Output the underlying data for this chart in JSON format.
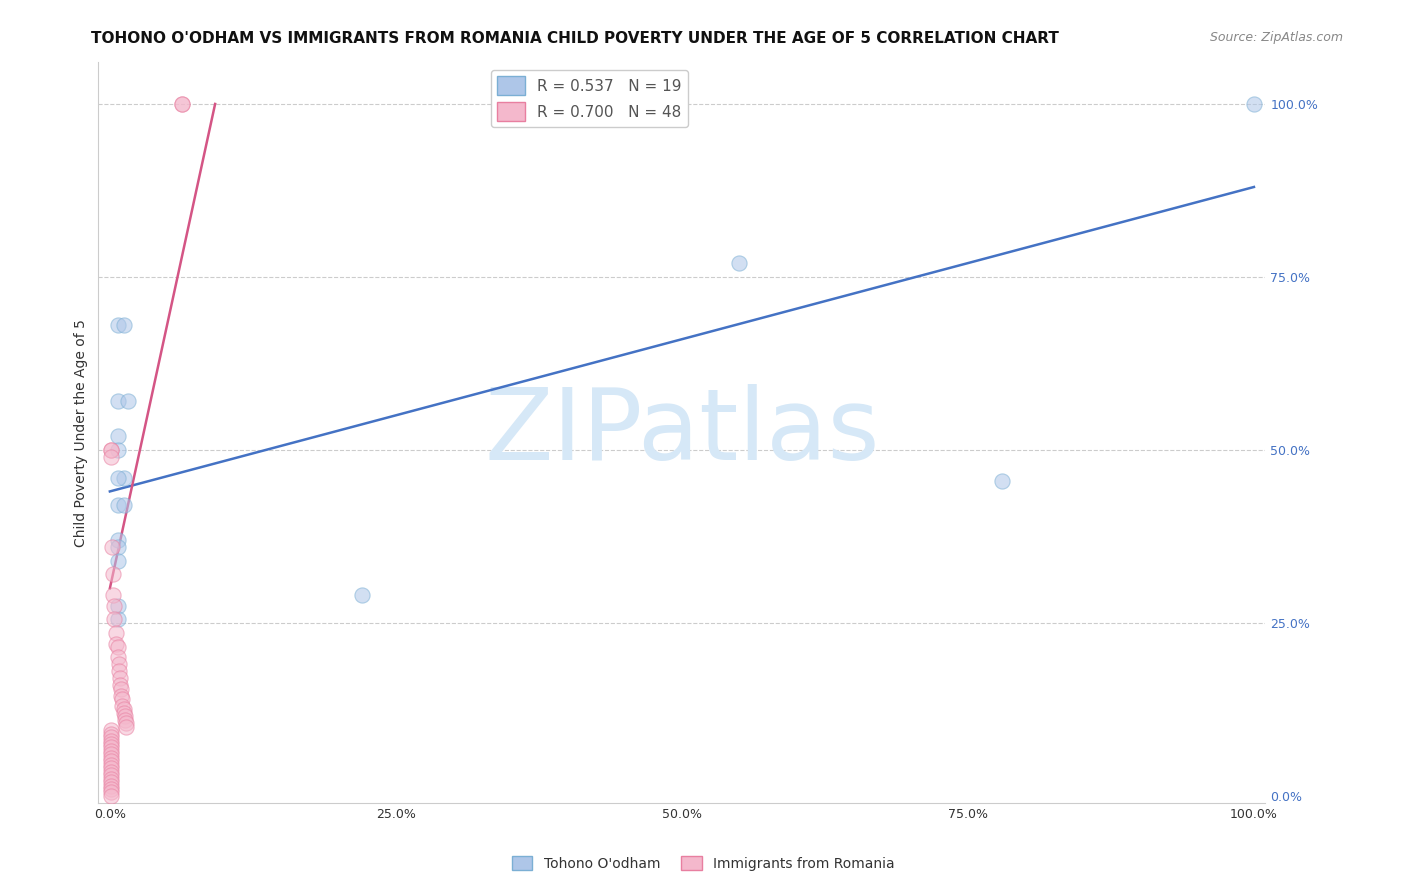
{
  "title": "TOHONO O'ODHAM VS IMMIGRANTS FROM ROMANIA CHILD POVERTY UNDER THE AGE OF 5 CORRELATION CHART",
  "source": "Source: ZipAtlas.com",
  "ylabel": "Child Poverty Under the Age of 5",
  "watermark": "ZIPatlas",
  "blue_R": 0.537,
  "blue_N": 19,
  "pink_R": 0.7,
  "pink_N": 48,
  "blue_scatter": [
    [
      0.007,
      0.68
    ],
    [
      0.012,
      0.68
    ],
    [
      0.007,
      0.57
    ],
    [
      0.016,
      0.57
    ],
    [
      0.007,
      0.52
    ],
    [
      0.007,
      0.5
    ],
    [
      0.012,
      0.46
    ],
    [
      0.007,
      0.46
    ],
    [
      0.007,
      0.42
    ],
    [
      0.012,
      0.42
    ],
    [
      0.007,
      0.37
    ],
    [
      0.007,
      0.36
    ],
    [
      0.007,
      0.34
    ],
    [
      0.007,
      0.275
    ],
    [
      0.007,
      0.255
    ],
    [
      0.22,
      0.29
    ],
    [
      0.55,
      0.77
    ],
    [
      0.78,
      0.455
    ],
    [
      1.0,
      1.0
    ]
  ],
  "pink_scatter": [
    [
      0.001,
      0.5
    ],
    [
      0.001,
      0.5
    ],
    [
      0.001,
      0.49
    ],
    [
      0.002,
      0.36
    ],
    [
      0.003,
      0.32
    ],
    [
      0.003,
      0.29
    ],
    [
      0.004,
      0.275
    ],
    [
      0.004,
      0.255
    ],
    [
      0.005,
      0.235
    ],
    [
      0.005,
      0.22
    ],
    [
      0.007,
      0.215
    ],
    [
      0.007,
      0.2
    ],
    [
      0.008,
      0.19
    ],
    [
      0.008,
      0.18
    ],
    [
      0.009,
      0.17
    ],
    [
      0.009,
      0.16
    ],
    [
      0.01,
      0.155
    ],
    [
      0.01,
      0.145
    ],
    [
      0.011,
      0.14
    ],
    [
      0.011,
      0.13
    ],
    [
      0.012,
      0.125
    ],
    [
      0.012,
      0.12
    ],
    [
      0.013,
      0.115
    ],
    [
      0.013,
      0.11
    ],
    [
      0.014,
      0.105
    ],
    [
      0.014,
      0.1
    ],
    [
      0.001,
      0.095
    ],
    [
      0.001,
      0.09
    ],
    [
      0.001,
      0.085
    ],
    [
      0.001,
      0.08
    ],
    [
      0.001,
      0.075
    ],
    [
      0.001,
      0.07
    ],
    [
      0.001,
      0.065
    ],
    [
      0.001,
      0.06
    ],
    [
      0.001,
      0.055
    ],
    [
      0.001,
      0.05
    ],
    [
      0.001,
      0.045
    ],
    [
      0.001,
      0.04
    ],
    [
      0.001,
      0.035
    ],
    [
      0.001,
      0.03
    ],
    [
      0.001,
      0.025
    ],
    [
      0.001,
      0.02
    ],
    [
      0.001,
      0.015
    ],
    [
      0.001,
      0.01
    ],
    [
      0.001,
      0.005
    ],
    [
      0.001,
      0.0
    ],
    [
      0.063,
      1.0
    ],
    [
      0.063,
      1.0
    ]
  ],
  "blue_line_x": [
    0.0,
    1.0
  ],
  "blue_line_y": [
    0.44,
    0.88
  ],
  "pink_line_x": [
    0.0,
    0.092
  ],
  "pink_line_y": [
    0.3,
    1.0
  ],
  "xlim": [
    -0.01,
    1.01
  ],
  "ylim": [
    -0.01,
    1.06
  ],
  "xticks": [
    0.0,
    0.25,
    0.5,
    0.75,
    1.0
  ],
  "xtick_labels": [
    "0.0%",
    "25.0%",
    "50.0%",
    "75.0%",
    "100.0%"
  ],
  "right_yticks": [
    0.0,
    0.25,
    0.5,
    0.75,
    1.0
  ],
  "right_ytick_labels": [
    "0.0%",
    "25.0%",
    "50.0%",
    "75.0%",
    "100.0%"
  ],
  "grid_color": "#cccccc",
  "blue_color": "#aec6e8",
  "pink_color": "#f4b8cc",
  "blue_edge_color": "#7bafd4",
  "pink_edge_color": "#e87fa0",
  "blue_line_color": "#4472c4",
  "pink_line_color": "#d45585",
  "right_tick_color": "#4472c4",
  "title_fontsize": 11,
  "source_fontsize": 9,
  "axis_label_fontsize": 10,
  "tick_fontsize": 9,
  "legend_fontsize": 11,
  "watermark_fontsize": 72,
  "watermark_color": "#d6e8f7",
  "scatter_size": 120,
  "scatter_alpha": 0.55,
  "line_width": 1.8
}
